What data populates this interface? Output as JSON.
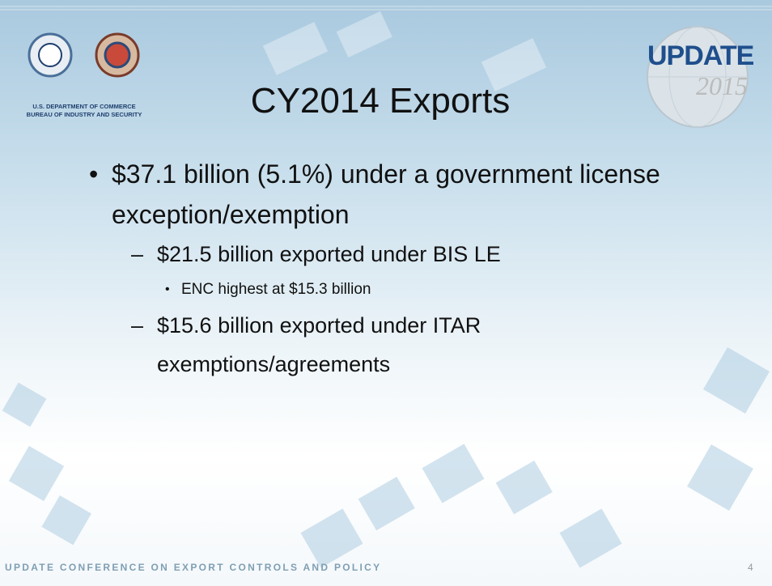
{
  "header": {
    "org_line1": "U.S. DEPARTMENT OF COMMERCE",
    "org_line2": "BUREAU OF INDUSTRY AND SECURITY",
    "title": "CY2014 Exports",
    "badge": {
      "word": "UPDATE",
      "year": "2015"
    }
  },
  "bullets": [
    {
      "text": "$37.1 billion (5.1%) under a government license exception/exemption",
      "children": [
        {
          "text": "$21.5 billion exported under BIS LE",
          "children": [
            {
              "text": "ENC highest at $15.3 billion"
            }
          ]
        },
        {
          "text": "$15.6 billion exported under ITAR exemptions/agreements"
        }
      ]
    }
  ],
  "footer": {
    "text": "UPDATE CONFERENCE ON EXPORT CONTROLS  AND POLICY",
    "page": "4"
  }
}
